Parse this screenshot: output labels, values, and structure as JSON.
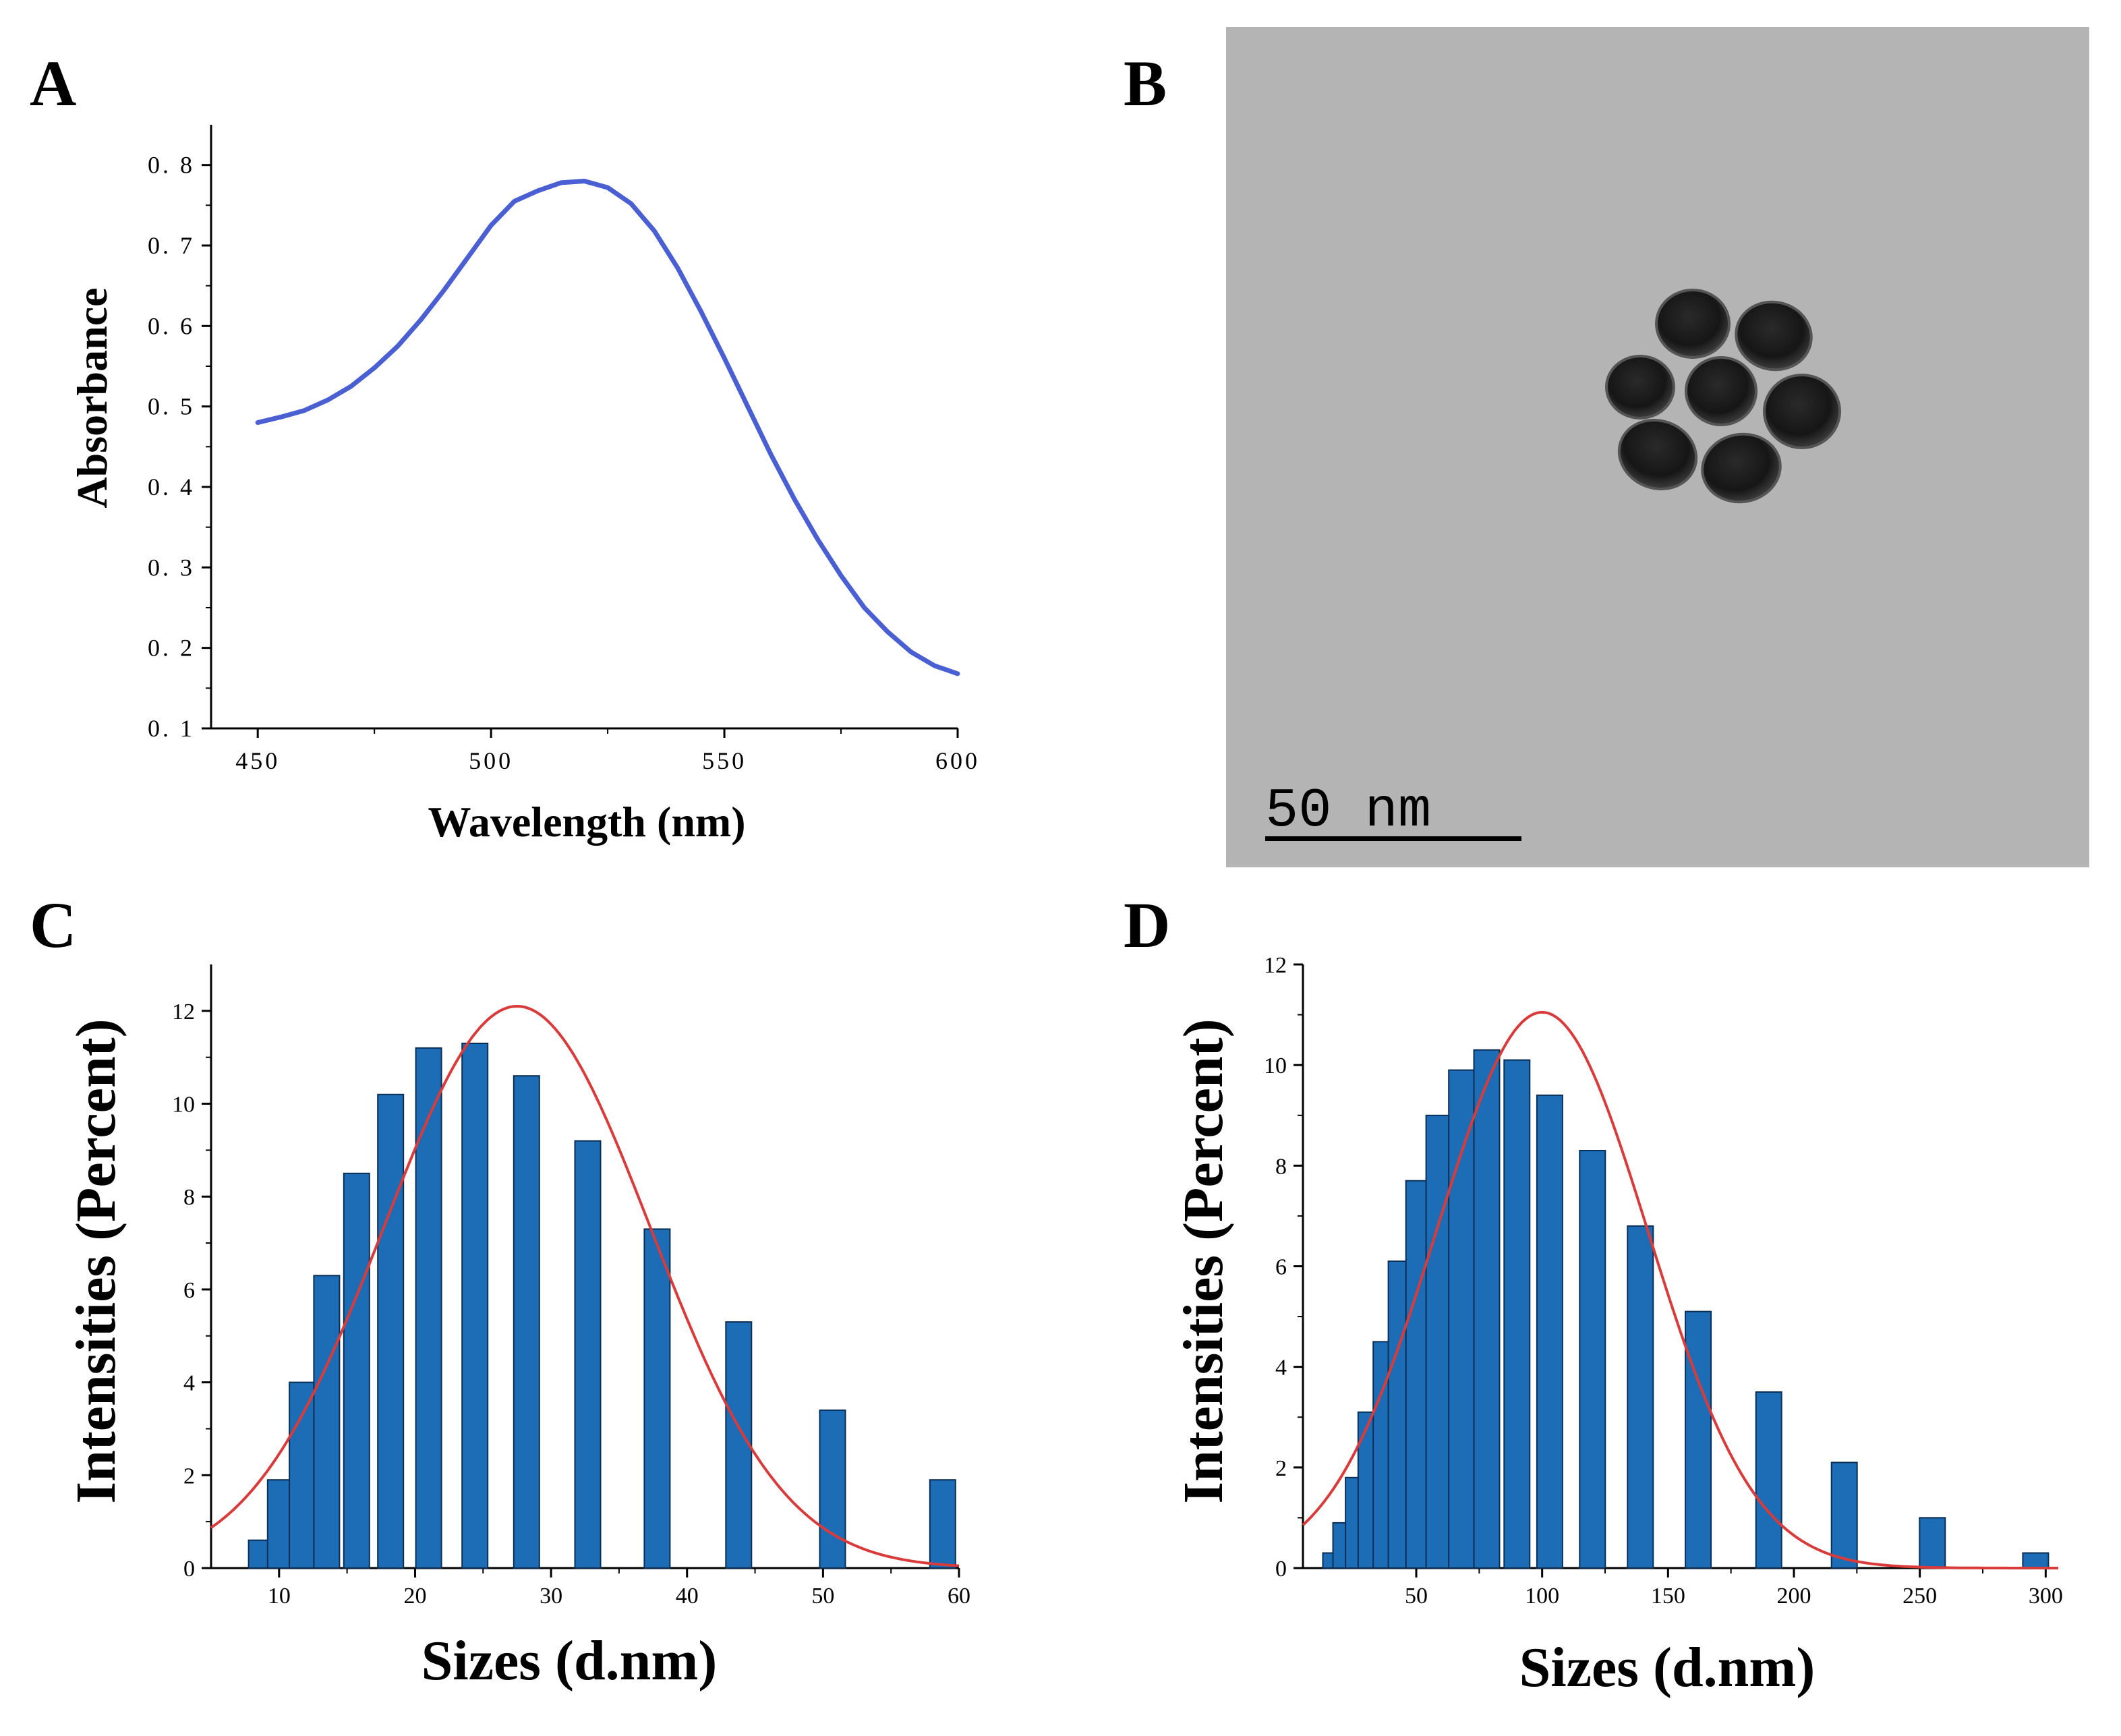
{
  "panels": {
    "a": "A",
    "b": "B",
    "c": "C",
    "d": "D"
  },
  "tem": {
    "scale_bar": "50 nm"
  },
  "chart_data": [
    {
      "id": "A",
      "type": "line",
      "title": "",
      "xlabel": "Wavelength (nm)",
      "ylabel": "Absorbance",
      "xlim": [
        440,
        600
      ],
      "ylim": [
        0.1,
        0.85
      ],
      "xticks": [
        450,
        500,
        550,
        600
      ],
      "yticks": [
        0.1,
        0.2,
        0.3,
        0.4,
        0.5,
        0.6,
        0.7,
        0.8
      ],
      "ytick_labels": [
        "0. 1",
        "0. 2",
        "0. 3",
        "0. 4",
        "0. 5",
        "0. 6",
        "0. 7",
        "0. 8"
      ],
      "color": "#4a5fd2",
      "series": [
        {
          "name": "Absorbance",
          "x": [
            450,
            455,
            460,
            465,
            470,
            475,
            480,
            485,
            490,
            495,
            500,
            505,
            510,
            515,
            520,
            525,
            530,
            535,
            540,
            545,
            550,
            555,
            560,
            565,
            570,
            575,
            580,
            585,
            590,
            595,
            600
          ],
          "y": [
            0.48,
            0.487,
            0.495,
            0.508,
            0.525,
            0.548,
            0.575,
            0.608,
            0.645,
            0.685,
            0.725,
            0.755,
            0.768,
            0.778,
            0.78,
            0.772,
            0.752,
            0.718,
            0.672,
            0.618,
            0.56,
            0.5,
            0.44,
            0.385,
            0.335,
            0.29,
            0.25,
            0.22,
            0.195,
            0.178,
            0.168
          ]
        }
      ]
    },
    {
      "id": "C",
      "type": "bar",
      "title": "",
      "xlabel": "Sizes (d.nm)",
      "ylabel": "Intensities (Percent)",
      "xlim": [
        5,
        60
      ],
      "ylim": [
        0,
        13
      ],
      "xticks": [
        10,
        20,
        30,
        40,
        50,
        60
      ],
      "yticks": [
        0,
        2,
        4,
        6,
        8,
        10,
        12
      ],
      "bar_color": "#1c6db5",
      "fit_color": "#d93a3a",
      "series": [
        {
          "name": "Intensity",
          "x": [
            8.7,
            10.1,
            11.7,
            13.5,
            15.7,
            18.2,
            21.0,
            24.4,
            28.2,
            32.7,
            37.8,
            43.8,
            50.7,
            58.8
          ],
          "values": [
            0.6,
            1.9,
            4.0,
            6.3,
            8.5,
            10.2,
            11.2,
            11.3,
            10.6,
            9.2,
            7.3,
            5.3,
            3.4,
            1.9
          ]
        }
      ],
      "fit": {
        "name": "Gaussian fit",
        "peak_x": 27.5,
        "peak_y": 12.1,
        "sigma": 9.8
      }
    },
    {
      "id": "D",
      "type": "bar",
      "title": "",
      "xlabel": "Sizes (d.nm)",
      "ylabel": "Intensities (Percent)",
      "xlim": [
        5,
        305
      ],
      "ylim": [
        0,
        12
      ],
      "xticks": [
        50,
        100,
        150,
        200,
        250,
        300
      ],
      "yticks": [
        0,
        2,
        4,
        6,
        8,
        10,
        12
      ],
      "bar_color": "#1c6db5",
      "fit_color": "#d93a3a",
      "series": [
        {
          "name": "Intensity",
          "x": [
            18,
            22,
            27,
            32,
            38,
            44,
            51,
            59,
            68,
            78,
            90,
            103,
            120,
            139,
            162,
            190,
            220,
            255,
            296
          ],
          "values": [
            0.3,
            0.9,
            1.8,
            3.1,
            4.5,
            6.1,
            7.7,
            9.0,
            9.9,
            10.3,
            10.1,
            9.4,
            8.3,
            6.8,
            5.1,
            3.5,
            2.1,
            1.0,
            0.3
          ]
        }
      ],
      "fit": {
        "name": "Gaussian fit",
        "peak_x": 100,
        "peak_y": 11.05,
        "sigma": 42
      }
    }
  ]
}
